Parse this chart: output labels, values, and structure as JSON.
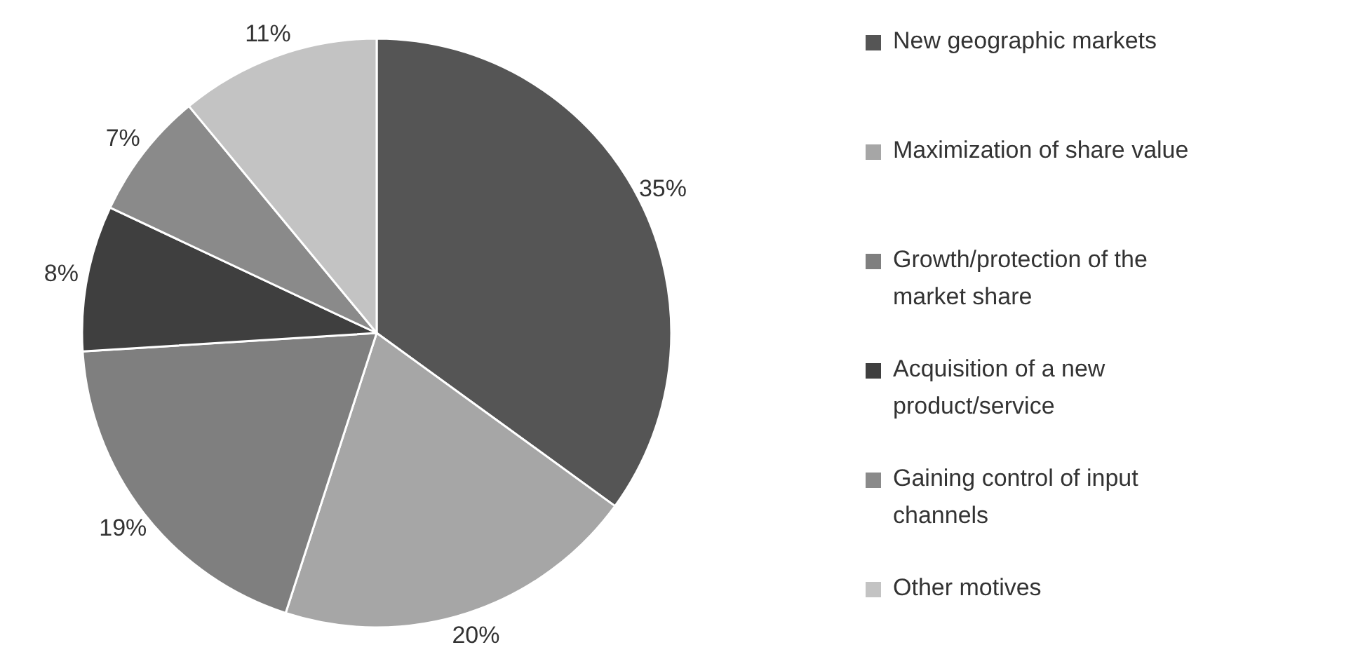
{
  "chart_data": {
    "type": "pie",
    "categories": [
      "New geographic markets",
      "Maximization of share value",
      "Growth/protection of the market share",
      "Acquisition of a new product/service",
      "Gaining control of input channels",
      "Other motives"
    ],
    "values": [
      35,
      20,
      19,
      8,
      7,
      11
    ],
    "value_labels": [
      "35%",
      "20%",
      "19%",
      "8%",
      "7%",
      "11%"
    ],
    "colors": [
      "#555555",
      "#a6a6a6",
      "#7f7f7f",
      "#3f3f3f",
      "#8a8a8a",
      "#c3c3c3"
    ],
    "legend": "right"
  }
}
